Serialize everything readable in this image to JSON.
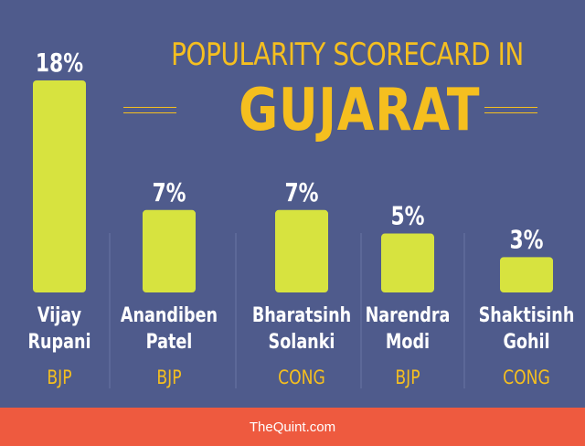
{
  "title": {
    "line1": "POPULARITY SCORECARD IN",
    "line2": "GUJARAT"
  },
  "chart_data": {
    "type": "bar",
    "title": "POPULARITY SCORECARD IN GUJARAT",
    "categories": [
      "Vijay Rupani",
      "Anandiben Patel",
      "Bharatsinh Solanki",
      "Narendra Modi",
      "Shaktisinh Gohil"
    ],
    "name_lines": [
      [
        "Vijay",
        "Rupani"
      ],
      [
        "Anandiben",
        "Patel"
      ],
      [
        "Bharatsinh",
        "Solanki"
      ],
      [
        "Narendra",
        "Modi"
      ],
      [
        "Shaktisinh",
        "Gohil"
      ]
    ],
    "values": [
      18,
      7,
      7,
      5,
      3
    ],
    "value_labels": [
      "18%",
      "7%",
      "7%",
      "5%",
      "3%"
    ],
    "parties": [
      "BJP",
      "BJP",
      "CONG",
      "BJP",
      "CONG"
    ],
    "ylim": [
      0,
      18
    ],
    "xlabel": "",
    "ylabel": "",
    "grid": false
  },
  "colors": {
    "background": "#4f5b8c",
    "bar": "#d7e33f",
    "title": "#f5bf1f",
    "party": "#f5bf1f",
    "text": "#ffffff",
    "footer": "#ee5a3f",
    "divider": "#6a76a4"
  },
  "footer": {
    "text": "TheQuint.com"
  }
}
